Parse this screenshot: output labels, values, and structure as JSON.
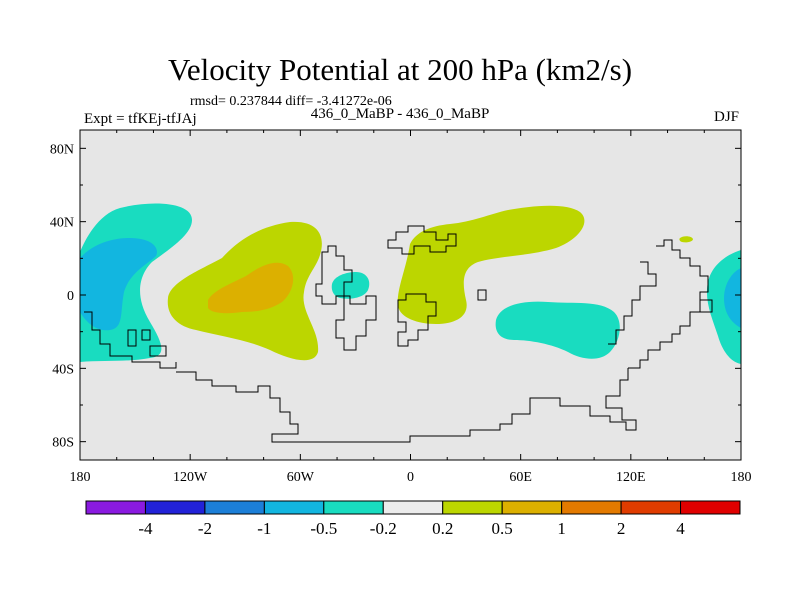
{
  "title": "Velocity Potential at 200 hPa (km2/s)",
  "stats": "rmsd= 0.237844 diff= -3.41272e-06",
  "left_label": "Expt = tfKEj-tfJAj",
  "center_label": "436_0_MaBP - 436_0_MaBP",
  "right_label": "DJF",
  "chart_data": {
    "type": "heatmap",
    "projection": "cylindrical-equidistant",
    "x_ticks": [
      "180",
      "120W",
      "60W",
      "0",
      "60E",
      "120E",
      "180"
    ],
    "x_tick_values": [
      -180,
      -120,
      -60,
      0,
      60,
      120,
      180
    ],
    "y_ticks": [
      "80N",
      "40N",
      "0",
      "40S",
      "80S"
    ],
    "y_tick_values": [
      80,
      40,
      0,
      -40,
      -80
    ],
    "xlim": [
      -180,
      180
    ],
    "ylim": [
      -90,
      90
    ],
    "background_color": "#e6e6e6",
    "colorbar": {
      "labels": [
        "-4",
        "-2",
        "-1",
        "-0.5",
        "-0.2",
        "0.2",
        "0.5",
        "1",
        "2",
        "4"
      ],
      "colors": [
        "#8a1ae0",
        "#2222d8",
        "#1c7fd8",
        "#12b6e0",
        "#19dcc0",
        "#ececec",
        "#bcd600",
        "#dcb000",
        "#e37a00",
        "#e03c00",
        "#e00000"
      ]
    },
    "regions": [
      {
        "level": "-0.2 to -0.5",
        "color": "#19dcc0",
        "approx_lon": [
          -180,
          -120
        ],
        "approx_lat": [
          -38,
          48
        ]
      },
      {
        "level": "-0.5 to -1",
        "color": "#12b6e0",
        "approx_lon": [
          -180,
          -148
        ],
        "approx_lat": [
          -20,
          32
        ]
      },
      {
        "level": "0.2 to 0.5",
        "color": "#bcd600",
        "approx_lon": [
          -133,
          -45
        ],
        "approx_lat": [
          -20,
          36
        ]
      },
      {
        "level": "0.5 to 1",
        "color": "#dcb000",
        "approx_lon": [
          -112,
          -70
        ],
        "approx_lat": [
          -10,
          18
        ]
      },
      {
        "level": "-0.2 to -0.5",
        "color": "#19dcc0",
        "approx_lon": [
          -45,
          -28
        ],
        "approx_lat": [
          -2,
          12
        ]
      },
      {
        "level": "0.2 to 0.5",
        "color": "#bcd600",
        "approx_lon": [
          -5,
          100
        ],
        "approx_lat": [
          -14,
          46
        ]
      },
      {
        "level": "-0.2 to -0.5",
        "color": "#19dcc0",
        "approx_lon": [
          48,
          110
        ],
        "approx_lat": [
          -36,
          -2
        ]
      },
      {
        "level": "0.2 to 0.5",
        "color": "#bcd600",
        "approx_lon": [
          148,
          158
        ],
        "approx_lat": [
          28,
          32
        ]
      },
      {
        "level": "-0.2 to -0.5",
        "color": "#19dcc0",
        "approx_lon": [
          160,
          180
        ],
        "approx_lat": [
          -38,
          22
        ]
      },
      {
        "level": "-0.5 to -1",
        "color": "#12b6e0",
        "approx_lon": [
          170,
          180
        ],
        "approx_lat": [
          -10,
          14
        ]
      }
    ]
  }
}
